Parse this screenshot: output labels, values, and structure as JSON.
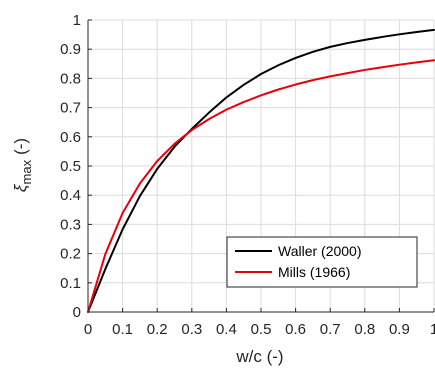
{
  "chart_data": {
    "type": "line",
    "title": "",
    "xlabel": "w/c (-)",
    "ylabel": {
      "symbol": "ξ",
      "subscript": "max",
      "unit": "(-)"
    },
    "xlim": [
      0,
      1
    ],
    "ylim": [
      0,
      1
    ],
    "grid": true,
    "legend_position": "bottom-right",
    "x_tick_labels": [
      "0",
      "0.1",
      "0.2",
      "0.3",
      "0.4",
      "0.5",
      "0.6",
      "0.7",
      "0.8",
      "0.9",
      "1"
    ],
    "y_tick_labels": [
      "0",
      "0.1",
      "0.2",
      "0.3",
      "0.4",
      "0.5",
      "0.6",
      "0.7",
      "0.8",
      "0.9",
      "1"
    ],
    "series": [
      {
        "name": "Waller (2000)",
        "color": "#000000",
        "x": [
          0,
          0.05,
          0.1,
          0.15,
          0.2,
          0.25,
          0.3,
          0.35,
          0.4,
          0.45,
          0.5,
          0.55,
          0.6,
          0.65,
          0.7,
          0.75,
          0.8,
          0.85,
          0.9,
          0.95,
          1.0
        ],
        "y": [
          0,
          0.147,
          0.283,
          0.397,
          0.49,
          0.566,
          0.627,
          0.683,
          0.735,
          0.778,
          0.815,
          0.845,
          0.87,
          0.891,
          0.908,
          0.921,
          0.932,
          0.942,
          0.951,
          0.959,
          0.966
        ]
      },
      {
        "name": "Mills (1966)",
        "color": "#e8000b",
        "x": [
          0,
          0.05,
          0.1,
          0.15,
          0.2,
          0.25,
          0.3,
          0.35,
          0.4,
          0.45,
          0.5,
          0.55,
          0.6,
          0.65,
          0.7,
          0.75,
          0.8,
          0.85,
          0.9,
          0.95,
          1.0
        ],
        "y": [
          0,
          0.198,
          0.339,
          0.44,
          0.517,
          0.576,
          0.623,
          0.661,
          0.693,
          0.719,
          0.742,
          0.762,
          0.779,
          0.794,
          0.807,
          0.818,
          0.829,
          0.838,
          0.847,
          0.855,
          0.862
        ]
      }
    ]
  }
}
